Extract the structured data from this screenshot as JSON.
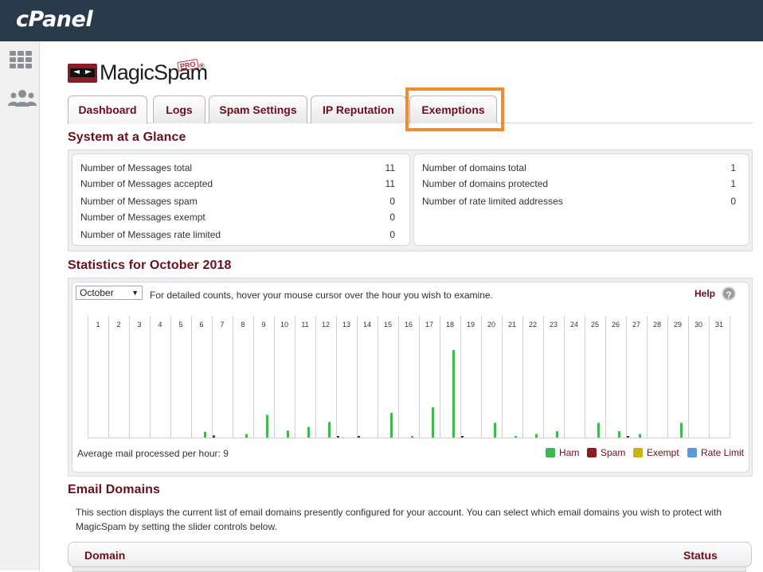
{
  "header": {
    "logo_text": "cPanel"
  },
  "rail": {
    "items": [
      "apps-grid-icon",
      "users-icon"
    ]
  },
  "app": {
    "logo_text": "MagicSpam",
    "logo_badge": "PRO",
    "logo_reg": "®"
  },
  "tabs": [
    {
      "label": "Dashboard",
      "active": true
    },
    {
      "label": "Logs",
      "active": false
    },
    {
      "label": "Spam Settings",
      "active": false
    },
    {
      "label": "IP Reputation",
      "active": false
    },
    {
      "label": "Exemptions",
      "active": false,
      "highlighted": true
    }
  ],
  "glance": {
    "title": "System at a Glance",
    "messages": [
      {
        "label": "Number of Messages total",
        "value": "11"
      },
      {
        "label": "Number of Messages accepted",
        "value": "11"
      },
      {
        "label": "Number of Messages spam",
        "value": "0"
      },
      {
        "label": "Number of Messages exempt",
        "value": "0"
      },
      {
        "label": "Number of Messages rate limited",
        "value": "0"
      }
    ],
    "domains": [
      {
        "label": "Number of domains total",
        "value": "1"
      },
      {
        "label": "Number of domains protected",
        "value": "1"
      },
      {
        "label": "Number of rate limited addresses",
        "value": "0"
      }
    ]
  },
  "stats": {
    "title": "Statistics for October 2018",
    "month_select": "October",
    "hint": "For detailed counts, hover your mouse cursor over the hour you wish to examine.",
    "help_label": "Help",
    "average": "Average mail processed per hour: 9",
    "legend": [
      {
        "label": "Ham",
        "color": "#3fb94f"
      },
      {
        "label": "Spam",
        "color": "#8b1c24"
      },
      {
        "label": "Exempt",
        "color": "#c9b418"
      },
      {
        "label": "Rate Limit",
        "color": "#5b9bd5"
      }
    ]
  },
  "chart_data": {
    "type": "bar",
    "categories": [
      "1",
      "2",
      "3",
      "4",
      "5",
      "6",
      "7",
      "8",
      "9",
      "10",
      "11",
      "12",
      "13",
      "14",
      "15",
      "16",
      "17",
      "18",
      "19",
      "20",
      "21",
      "22",
      "23",
      "24",
      "25",
      "26",
      "27",
      "28",
      "29",
      "30",
      "31"
    ],
    "series": [
      {
        "name": "Ham",
        "color": "#3fb94f",
        "values": [
          0,
          0,
          0,
          0,
          0,
          0.8,
          0,
          0.5,
          3.2,
          1,
          1.5,
          2.2,
          0,
          0,
          3.5,
          0.1,
          4.3,
          12.4,
          0,
          2.1,
          0.1,
          0.5,
          0.9,
          0,
          2.1,
          0.9,
          0.5,
          0,
          2.1,
          0,
          0
        ]
      },
      {
        "name": "Spam",
        "color": "#8b1c24",
        "values": [
          0,
          0,
          0,
          0,
          0,
          0,
          0.3,
          0,
          0,
          0,
          0,
          0,
          0.1,
          0.1,
          0,
          0,
          0,
          0,
          0.1,
          0,
          0,
          0,
          0,
          0,
          0,
          0,
          0.2,
          0,
          0,
          0,
          0
        ]
      },
      {
        "name": "Exempt",
        "color": "#c9b418",
        "values": [
          0,
          0,
          0,
          0,
          0,
          0,
          0,
          0,
          0,
          0,
          0,
          0,
          0,
          0,
          0,
          0,
          0,
          0,
          0,
          0,
          0,
          0,
          0,
          0,
          0,
          0,
          0,
          0,
          0,
          0,
          0
        ]
      },
      {
        "name": "Rate Limit",
        "color": "#5b9bd5",
        "values": [
          0,
          0,
          0,
          0,
          0,
          0,
          0,
          0,
          0,
          0,
          0,
          0,
          0,
          0,
          0,
          0,
          0,
          0,
          0,
          0,
          0,
          0,
          0,
          0,
          0,
          0,
          0,
          0,
          0,
          0,
          0
        ]
      }
    ],
    "ylim": [
      0,
      15
    ],
    "title": "",
    "xlabel": "",
    "ylabel": "",
    "grid": "vertical",
    "legend": "bottom-right"
  },
  "domains": {
    "title": "Email Domains",
    "description": "This section displays the current list of email domains presently configured for your account. You can select which email domains you wish to protect with MagicSpam by setting the slider controls below.",
    "col_domain": "Domain",
    "col_status": "Status"
  }
}
